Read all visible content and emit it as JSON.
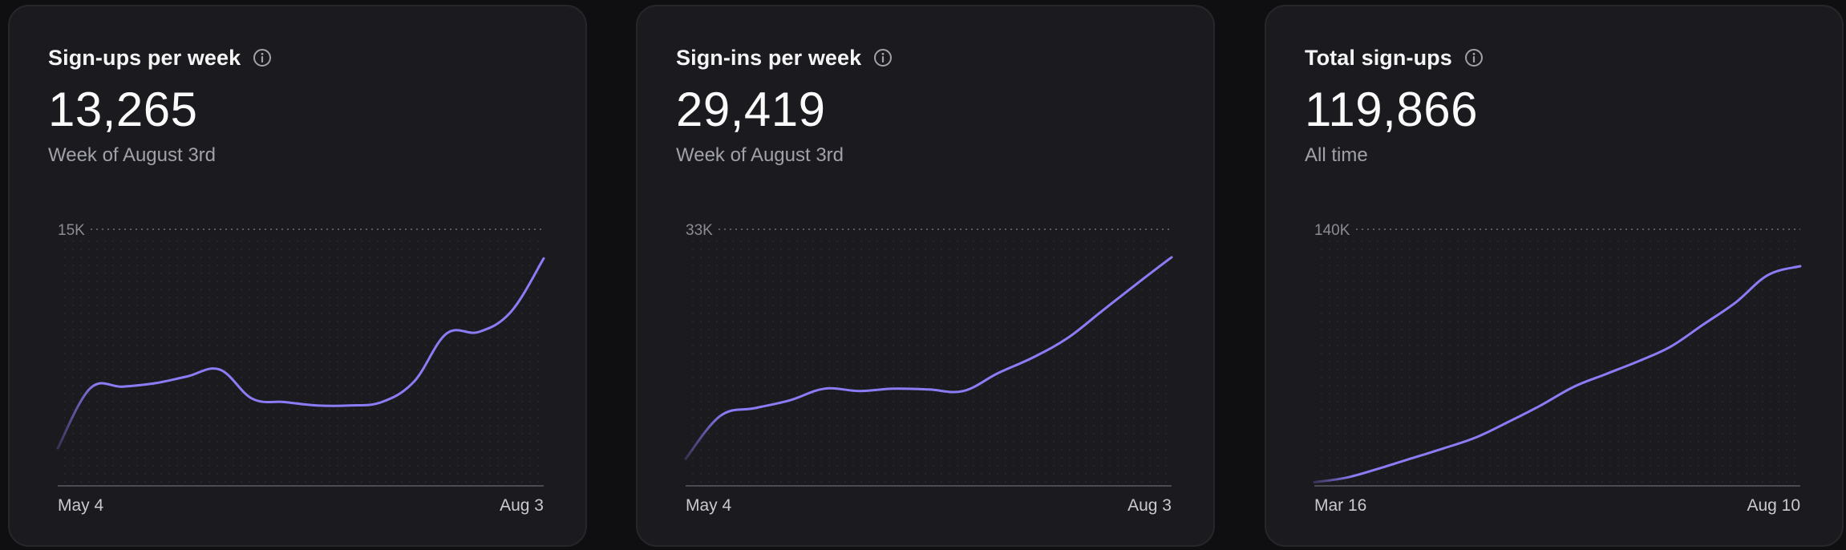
{
  "colors": {
    "background": "#0f0f11",
    "card": "#1b1b1f",
    "line": "#8b7cf6",
    "grid": "#71717a",
    "text_muted": "#a1a1aa"
  },
  "cards": [
    {
      "title": "Sign-ups per week",
      "icon": "info-icon",
      "value": "13,265",
      "subtitle": "Week of August 3rd"
    },
    {
      "title": "Sign-ins per week",
      "icon": "info-icon",
      "value": "29,419",
      "subtitle": "Week of August 3rd"
    },
    {
      "title": "Total sign-ups",
      "icon": "info-icon",
      "value": "119,866",
      "subtitle": "All time"
    }
  ],
  "chart_data": [
    {
      "type": "line",
      "title": "Sign-ups per week",
      "ymax_label": "15K",
      "ylim": [
        0,
        15000
      ],
      "x_start_label": "May 4",
      "x_end_label": "Aug 3",
      "grid": "dotted",
      "values": [
        2200,
        5700,
        5800,
        6000,
        6400,
        6800,
        5100,
        4900,
        4700,
        4700,
        4900,
        6100,
        8900,
        9000,
        10200,
        13300
      ]
    },
    {
      "type": "line",
      "title": "Sign-ins per week",
      "ymax_label": "33K",
      "ylim": [
        0,
        33000
      ],
      "x_start_label": "May 4",
      "x_end_label": "Aug 3",
      "grid": "dotted",
      "values": [
        3500,
        9000,
        10000,
        11000,
        12500,
        12200,
        12500,
        12400,
        12200,
        14500,
        16500,
        19000,
        22500,
        26000,
        29400
      ]
    },
    {
      "type": "line",
      "title": "Total sign-ups",
      "ymax_label": "140K",
      "ylim": [
        0,
        140000
      ],
      "x_start_label": "Mar 16",
      "x_end_label": "Aug 10",
      "grid": "dotted",
      "values": [
        2000,
        4500,
        9500,
        15000,
        20500,
        26500,
        35000,
        44000,
        54000,
        61000,
        68000,
        76000,
        88000,
        100000,
        115000,
        119866
      ]
    }
  ]
}
